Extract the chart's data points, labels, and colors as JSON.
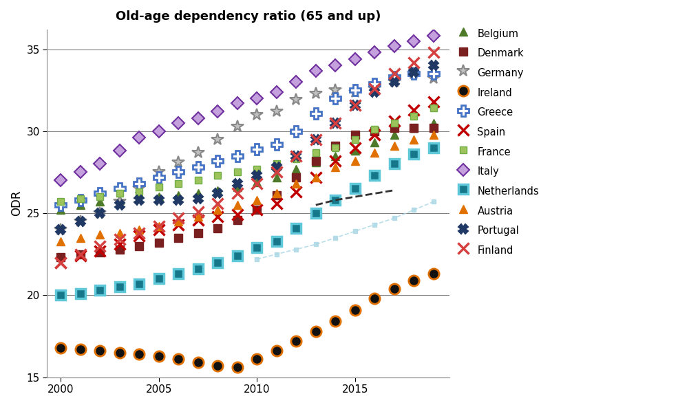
{
  "title": "Old-age dependency ratio (65 and up)",
  "ylabel": "ODR",
  "xlim": [
    1999.3,
    2019.8
  ],
  "ylim": [
    15,
    36.2
  ],
  "yticks": [
    15,
    20,
    25,
    30,
    35
  ],
  "xticks": [
    2000,
    2005,
    2010,
    2015
  ],
  "years": [
    2000,
    2001,
    2002,
    2003,
    2004,
    2005,
    2006,
    2007,
    2008,
    2009,
    2010,
    2011,
    2012,
    2013,
    2014,
    2015,
    2016,
    2017,
    2018,
    2019
  ],
  "series_data": {
    "Belgium": [
      25.2,
      25.5,
      25.7,
      25.8,
      25.9,
      26.0,
      26.1,
      26.2,
      26.4,
      26.6,
      26.9,
      27.2,
      27.7,
      28.1,
      28.5,
      28.8,
      29.3,
      29.8,
      30.2,
      30.5
    ],
    "Denmark": [
      22.3,
      22.5,
      22.6,
      22.8,
      23.0,
      23.2,
      23.5,
      23.8,
      24.1,
      24.6,
      25.2,
      26.1,
      27.2,
      28.2,
      29.1,
      29.8,
      30.0,
      30.2,
      30.2,
      30.2
    ],
    "Germany": [
      24.0,
      24.5,
      25.0,
      25.7,
      26.5,
      27.5,
      28.1,
      28.7,
      29.5,
      30.3,
      31.0,
      31.2,
      31.9,
      32.3,
      32.5,
      32.4,
      32.6,
      33.0,
      33.5,
      33.2
    ],
    "Ireland": [
      16.8,
      16.7,
      16.6,
      16.5,
      16.4,
      16.3,
      16.1,
      15.9,
      15.7,
      15.6,
      16.1,
      16.6,
      17.2,
      17.8,
      18.4,
      19.1,
      19.8,
      20.4,
      20.9,
      21.3
    ],
    "Greece": [
      25.5,
      25.8,
      26.2,
      26.5,
      26.8,
      27.2,
      27.5,
      27.8,
      28.2,
      28.5,
      28.9,
      29.2,
      30.0,
      31.1,
      32.0,
      32.5,
      32.9,
      33.3,
      33.5,
      33.5
    ],
    "Spain": [
      22.0,
      22.4,
      22.7,
      23.1,
      23.6,
      24.0,
      24.3,
      24.6,
      24.8,
      24.9,
      25.2,
      25.6,
      26.3,
      27.2,
      28.2,
      29.0,
      29.8,
      30.6,
      31.3,
      31.8
    ],
    "France": [
      25.7,
      25.9,
      26.0,
      26.2,
      26.3,
      26.6,
      26.8,
      27.0,
      27.3,
      27.5,
      27.7,
      28.0,
      28.3,
      28.7,
      29.0,
      29.5,
      30.1,
      30.5,
      30.9,
      31.4
    ],
    "Italy": [
      27.0,
      27.5,
      28.0,
      28.8,
      29.6,
      30.0,
      30.5,
      30.8,
      31.2,
      31.7,
      32.0,
      32.4,
      33.0,
      33.7,
      34.0,
      34.4,
      34.8,
      35.2,
      35.5,
      35.8
    ],
    "Netherlands": [
      20.0,
      20.1,
      20.3,
      20.5,
      20.7,
      21.0,
      21.3,
      21.6,
      22.0,
      22.4,
      22.9,
      23.3,
      24.1,
      25.0,
      25.8,
      26.5,
      27.3,
      28.0,
      28.6,
      29.0
    ],
    "Austria": [
      23.3,
      23.5,
      23.7,
      23.8,
      24.0,
      24.2,
      24.5,
      24.8,
      25.2,
      25.5,
      25.8,
      26.2,
      26.8,
      27.2,
      27.8,
      28.2,
      28.7,
      29.1,
      29.5,
      29.8
    ],
    "Portugal": [
      24.0,
      24.5,
      25.0,
      25.5,
      25.8,
      25.8,
      25.8,
      25.9,
      26.2,
      26.8,
      27.3,
      27.8,
      28.5,
      29.5,
      30.5,
      31.6,
      32.4,
      33.0,
      33.6,
      34.0
    ],
    "Finland": [
      22.0,
      22.5,
      23.0,
      23.4,
      23.8,
      24.2,
      24.7,
      25.1,
      25.6,
      26.2,
      26.8,
      27.5,
      28.5,
      29.5,
      30.5,
      31.6,
      32.6,
      33.5,
      34.2,
      34.8
    ]
  },
  "dashed_light_blue_years": [
    2010,
    2011,
    2012,
    2013,
    2014,
    2015,
    2016,
    2017,
    2018,
    2019
  ],
  "dashed_light_blue_vals": [
    22.2,
    22.5,
    22.8,
    23.1,
    23.5,
    23.9,
    24.3,
    24.7,
    25.2,
    25.7
  ],
  "dashed_black_years": [
    2013,
    2014,
    2015,
    2016,
    2017
  ],
  "dashed_black_vals": [
    25.5,
    25.8,
    26.0,
    26.2,
    26.4
  ]
}
